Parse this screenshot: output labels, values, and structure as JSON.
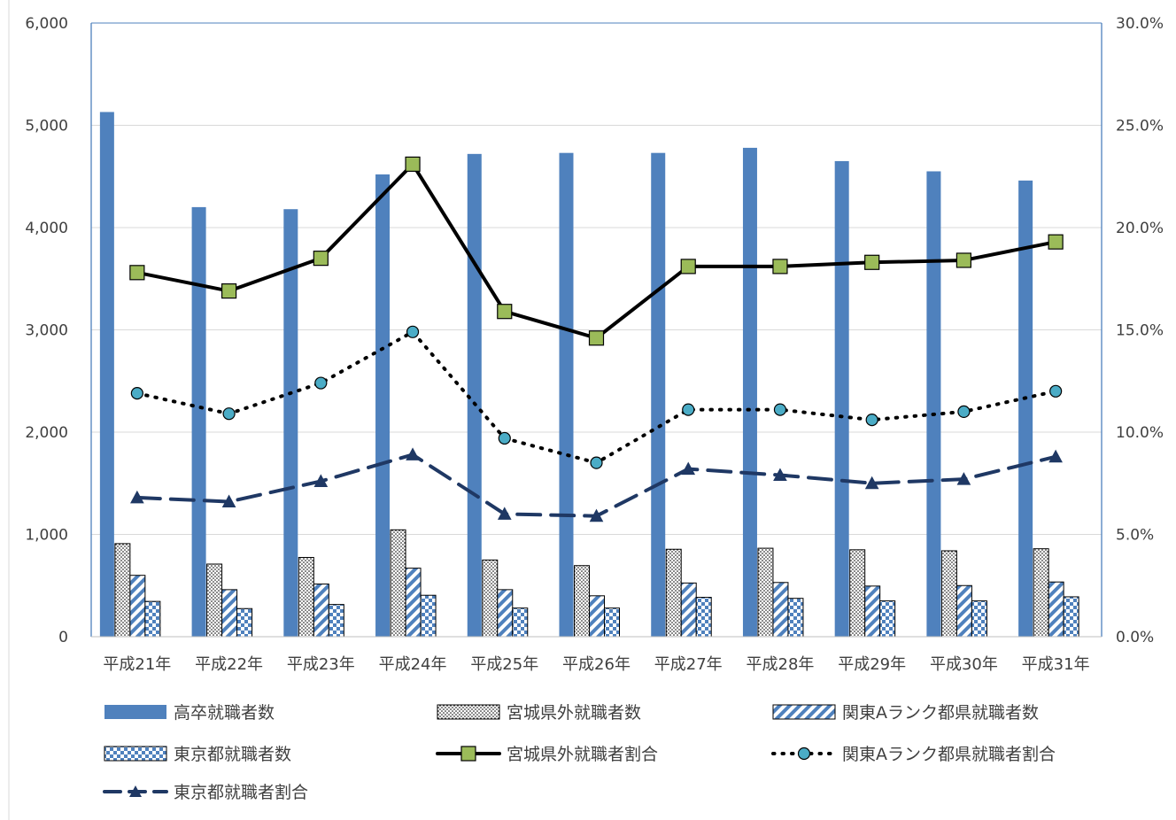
{
  "chart_data": {
    "type": "bar",
    "categories": [
      "平成21年",
      "平成22年",
      "平成23年",
      "平成24年",
      "平成25年",
      "平成26年",
      "平成27年",
      "平成28年",
      "平成29年",
      "平成30年",
      "平成31年"
    ],
    "y_left": {
      "ylim": [
        0,
        6000
      ],
      "ticks": [
        0,
        1000,
        2000,
        3000,
        4000,
        5000,
        6000
      ],
      "tick_labels": [
        "0",
        "1,000",
        "2,000",
        "3,000",
        "4,000",
        "5,000",
        "6,000"
      ]
    },
    "y_right": {
      "ylim": [
        0,
        30
      ],
      "ticks": [
        0,
        5,
        10,
        15,
        20,
        25,
        30
      ],
      "tick_labels": [
        "0.0%",
        "5.0%",
        "10.0%",
        "15.0%",
        "20.0%",
        "25.0%",
        "30.0%"
      ]
    },
    "grid": true,
    "legend_position": "bottom",
    "bar_series": [
      {
        "name": "高卒就職者数",
        "pattern": "solid",
        "color": "#4F81BD",
        "values": [
          5130,
          4200,
          4180,
          4520,
          4720,
          4730,
          4730,
          4780,
          4650,
          4550,
          4460
        ]
      },
      {
        "name": "宮城県外就職者数",
        "pattern": "dots",
        "color": "#000000",
        "values": [
          910,
          710,
          775,
          1045,
          750,
          695,
          855,
          865,
          850,
          840,
          860
        ]
      },
      {
        "name": "関東Aランク都県就職者数",
        "pattern": "diagonal",
        "color": "#4F81BD",
        "values": [
          600,
          460,
          515,
          670,
          460,
          400,
          525,
          530,
          495,
          500,
          535
        ]
      },
      {
        "name": "東京都就職者数",
        "pattern": "checker",
        "color": "#4F81BD",
        "values": [
          345,
          275,
          315,
          405,
          280,
          280,
          385,
          375,
          350,
          350,
          390
        ]
      }
    ],
    "line_series": [
      {
        "name": "宮城県外就職者割合",
        "style": "solid",
        "marker": "square",
        "color": "#000000",
        "marker_color": "#9BBB59",
        "values": [
          17.8,
          16.9,
          18.5,
          23.1,
          15.9,
          14.6,
          18.1,
          18.1,
          18.3,
          18.4,
          19.3
        ]
      },
      {
        "name": "関東Aランク都県就職者割合",
        "style": "dotted",
        "marker": "circle",
        "color": "#000000",
        "marker_color": "#4BACC6",
        "values": [
          11.9,
          10.9,
          12.4,
          14.9,
          9.7,
          8.5,
          11.1,
          11.1,
          10.6,
          11.0,
          12.0
        ]
      },
      {
        "name": "東京都就職者割合",
        "style": "dashed",
        "marker": "triangle",
        "color": "#1F3864",
        "marker_color": "#1F3864",
        "values": [
          6.8,
          6.6,
          7.6,
          8.9,
          6.0,
          5.9,
          8.2,
          7.9,
          7.5,
          7.7,
          8.8
        ]
      }
    ]
  }
}
